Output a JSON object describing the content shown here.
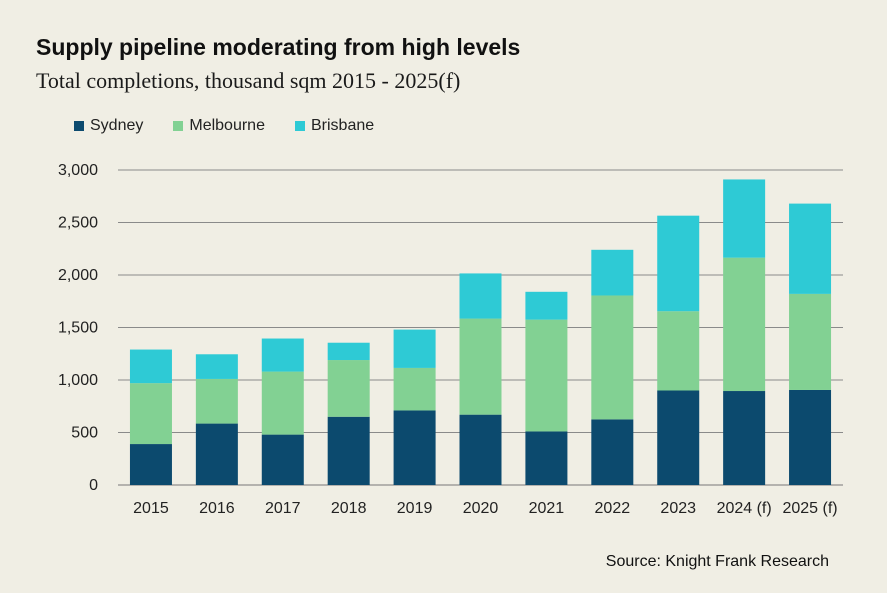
{
  "title": "Supply pipeline moderating from high levels",
  "subtitle": "Total completions, thousand sqm 2015 - 2025(f)",
  "source": "Source: Knight Frank Research",
  "chart_data": {
    "type": "bar",
    "stacked": true,
    "categories": [
      "2015",
      "2016",
      "2017",
      "2018",
      "2019",
      "2020",
      "2021",
      "2022",
      "2023",
      "2024 (f)",
      "2025 (f)"
    ],
    "series": [
      {
        "name": "Sydney",
        "color": "#0c4a6e",
        "values": [
          390,
          585,
          480,
          650,
          710,
          670,
          510,
          625,
          900,
          895,
          905
        ]
      },
      {
        "name": "Melbourne",
        "color": "#82d193",
        "values": [
          580,
          425,
          600,
          540,
          405,
          915,
          1065,
          1180,
          755,
          1270,
          915
        ]
      },
      {
        "name": "Brisbane",
        "color": "#2ecad5",
        "values": [
          320,
          235,
          315,
          165,
          365,
          430,
          265,
          435,
          910,
          745,
          860
        ]
      }
    ],
    "yticks": [
      "0",
      "500",
      "1,000",
      "1,500",
      "2,000",
      "2,500",
      "3,000"
    ],
    "ylim": [
      0,
      3000
    ],
    "grid": true,
    "legend_position": "top-left"
  }
}
